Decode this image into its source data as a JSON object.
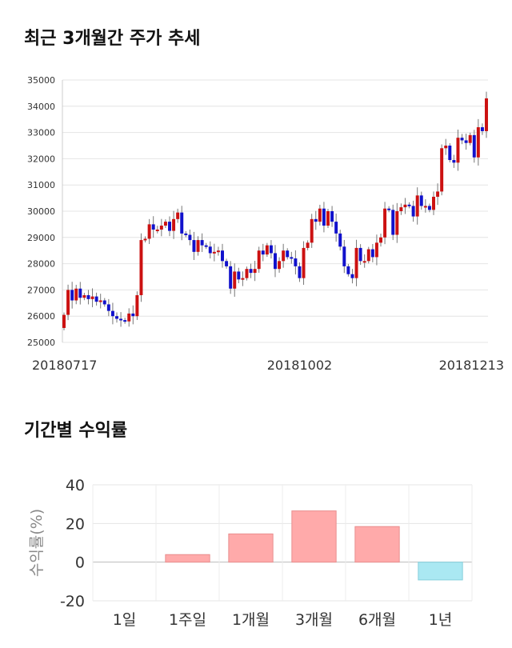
{
  "sections": {
    "price_title": "최근 3개월간 주가 추세",
    "return_title": "기간별 수익률"
  },
  "chart_data": [
    {
      "type": "candlestick",
      "title": "최근 3개월간 주가 추세",
      "ylim": [
        25000,
        35000
      ],
      "y_ticks": [
        25000,
        26000,
        27000,
        28000,
        29000,
        30000,
        31000,
        32000,
        33000,
        34000,
        35000
      ],
      "x_tick_labels": [
        "20180717",
        "20181002",
        "20181213"
      ],
      "colors": {
        "up": "#cc1111",
        "down": "#1111cc"
      },
      "closes": [
        26050,
        27000,
        26600,
        27050,
        26700,
        26800,
        26650,
        26750,
        26550,
        26600,
        26450,
        26200,
        26000,
        25900,
        25850,
        25800,
        26100,
        26000,
        26800,
        28900,
        28950,
        29500,
        29300,
        29300,
        29450,
        29600,
        29250,
        29700,
        29950,
        29150,
        29100,
        28900,
        28450,
        28900,
        28700,
        28650,
        28400,
        28450,
        28500,
        28100,
        27900,
        27050,
        27700,
        27400,
        27450,
        27800,
        27650,
        27800,
        28500,
        28350,
        28700,
        28400,
        27800,
        28100,
        28500,
        28250,
        28200,
        27900,
        27450,
        28600,
        28800,
        29700,
        29600,
        30100,
        29450,
        30000,
        29600,
        29150,
        28650,
        27900,
        27600,
        27450,
        28600,
        28100,
        28100,
        28550,
        28250,
        28800,
        29000,
        30100,
        30050,
        29100,
        30000,
        30150,
        30250,
        30200,
        29800,
        30600,
        30200,
        30200,
        30050,
        30550,
        30750,
        32400,
        32500,
        31950,
        31850,
        32800,
        32700,
        32600,
        32900,
        32050,
        33200,
        33050,
        34300
      ],
      "x_tick_index": [
        0,
        58,
        104
      ]
    },
    {
      "type": "bar",
      "title": "기간별 수익률",
      "ylabel": "수익률(%)",
      "categories": [
        "1일",
        "1주일",
        "1개월",
        "3개월",
        "6개월",
        "1년"
      ],
      "values": [
        0,
        3.9,
        14.6,
        26.5,
        18.4,
        -9.2
      ],
      "ylim": [
        -20,
        40
      ],
      "y_ticks": [
        -20,
        0,
        20,
        40
      ],
      "colors": {
        "positive": "#ffaaaa",
        "negative": "#aae8f2"
      }
    }
  ]
}
